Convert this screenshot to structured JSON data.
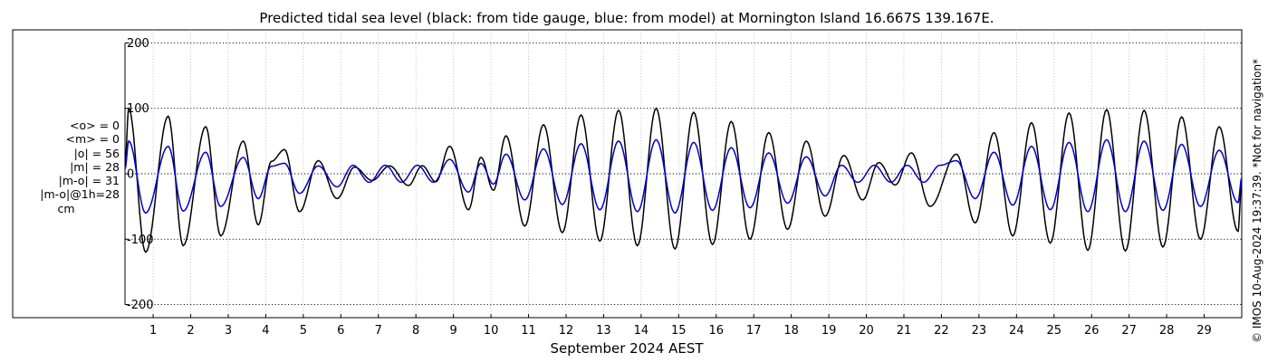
{
  "chart_data": {
    "type": "line",
    "title": "Predicted tidal sea level (black: from tide gauge, blue: from model) at Mornington Island 16.667S 139.167E.",
    "xlabel": "September 2024 AEST",
    "ylabel": "",
    "xlim": [
      0.25,
      30
    ],
    "ylim": [
      -220,
      220
    ],
    "yticks": [
      -200,
      -100,
      0,
      100,
      200
    ],
    "ytick_labels": [
      "-200",
      "-100",
      "0",
      "100",
      "200"
    ],
    "xticks": [
      1,
      2,
      3,
      4,
      5,
      6,
      7,
      8,
      9,
      10,
      11,
      12,
      13,
      14,
      15,
      16,
      17,
      18,
      19,
      20,
      21,
      22,
      23,
      24,
      25,
      26,
      27,
      28,
      29
    ],
    "xtick_labels": [
      "1",
      "2",
      "3",
      "4",
      "5",
      "6",
      "7",
      "8",
      "9",
      "10",
      "11",
      "12",
      "13",
      "14",
      "15",
      "16",
      "17",
      "18",
      "19",
      "20",
      "21",
      "22",
      "23",
      "24",
      "25",
      "26",
      "27",
      "28",
      "29"
    ],
    "grid": true,
    "series_names": [
      "Tide gauge",
      "Model"
    ],
    "series_colors": [
      "#000000",
      "#0000cc"
    ],
    "series_amplitudes_cm": [
      {
        "name": "Tide gauge",
        "peaks": [
          [
            0.35,
            100
          ],
          [
            0.8,
            -120
          ],
          [
            1.4,
            88
          ],
          [
            1.8,
            -110
          ],
          [
            2.4,
            72
          ],
          [
            2.8,
            -95
          ],
          [
            3.4,
            50
          ],
          [
            3.8,
            -78
          ],
          [
            4.5,
            37
          ],
          [
            4.9,
            -58
          ],
          [
            5.4,
            20
          ],
          [
            5.9,
            -38
          ],
          [
            7.3,
            12
          ],
          [
            7.8,
            -18
          ],
          [
            8.9,
            42
          ],
          [
            9.4,
            -55
          ],
          [
            10.4,
            58
          ],
          [
            10.9,
            -80
          ],
          [
            11.4,
            75
          ],
          [
            11.9,
            -90
          ],
          [
            12.4,
            90
          ],
          [
            12.9,
            -103
          ],
          [
            13.4,
            97
          ],
          [
            13.9,
            -110
          ],
          [
            14.4,
            100
          ],
          [
            14.9,
            -115
          ],
          [
            15.4,
            94
          ],
          [
            15.9,
            -108
          ],
          [
            16.4,
            80
          ],
          [
            16.9,
            -100
          ],
          [
            17.4,
            63
          ],
          [
            17.9,
            -85
          ],
          [
            18.4,
            50
          ],
          [
            18.9,
            -65
          ],
          [
            19.4,
            28
          ],
          [
            19.9,
            -40
          ],
          [
            21.2,
            32
          ],
          [
            21.7,
            -50
          ],
          [
            22.4,
            30
          ],
          [
            22.9,
            -75
          ],
          [
            23.4,
            63
          ],
          [
            23.9,
            -95
          ],
          [
            24.4,
            78
          ],
          [
            24.9,
            -106
          ],
          [
            25.4,
            93
          ],
          [
            25.9,
            -117
          ],
          [
            26.4,
            98
          ],
          [
            26.9,
            -118
          ],
          [
            27.4,
            97
          ],
          [
            27.9,
            -112
          ],
          [
            28.4,
            87
          ],
          [
            28.9,
            -100
          ],
          [
            29.4,
            72
          ],
          [
            29.9,
            -88
          ]
        ]
      },
      {
        "name": "Model",
        "peaks": [
          [
            0.35,
            50
          ],
          [
            0.8,
            -60
          ],
          [
            1.4,
            42
          ],
          [
            1.8,
            -57
          ],
          [
            2.4,
            33
          ],
          [
            2.8,
            -50
          ],
          [
            3.4,
            25
          ],
          [
            3.8,
            -38
          ],
          [
            4.5,
            16
          ],
          [
            4.9,
            -30
          ],
          [
            5.4,
            12
          ],
          [
            5.9,
            -20
          ],
          [
            8.9,
            22
          ],
          [
            9.4,
            -28
          ],
          [
            10.4,
            30
          ],
          [
            10.9,
            -40
          ],
          [
            11.4,
            38
          ],
          [
            11.9,
            -47
          ],
          [
            12.4,
            46
          ],
          [
            12.9,
            -55
          ],
          [
            13.4,
            50
          ],
          [
            13.9,
            -58
          ],
          [
            14.4,
            52
          ],
          [
            14.9,
            -60
          ],
          [
            15.4,
            48
          ],
          [
            15.9,
            -56
          ],
          [
            16.4,
            40
          ],
          [
            16.9,
            -52
          ],
          [
            17.4,
            32
          ],
          [
            17.9,
            -45
          ],
          [
            18.4,
            26
          ],
          [
            18.9,
            -34
          ],
          [
            22.4,
            20
          ],
          [
            22.9,
            -38
          ],
          [
            23.4,
            33
          ],
          [
            23.9,
            -48
          ],
          [
            24.4,
            42
          ],
          [
            24.9,
            -55
          ],
          [
            25.4,
            48
          ],
          [
            25.9,
            -58
          ],
          [
            26.4,
            52
          ],
          [
            26.9,
            -58
          ],
          [
            27.4,
            50
          ],
          [
            27.9,
            -56
          ],
          [
            28.4,
            45
          ],
          [
            28.9,
            -50
          ],
          [
            29.4,
            36
          ],
          [
            29.9,
            -44
          ]
        ]
      }
    ]
  },
  "stats": {
    "mean_obs": "<o> = 0",
    "mean_model": "<m> = 0",
    "abs_obs": "|o| = 56",
    "abs_model": "|m| = 28",
    "abs_diff": "|m-o| = 31",
    "abs_diff_1h": "|m-o|@1h=28",
    "unit": "cm"
  },
  "watermark": "© IMOS 10-Aug-2024 19:37:39. *Not for navigation*"
}
